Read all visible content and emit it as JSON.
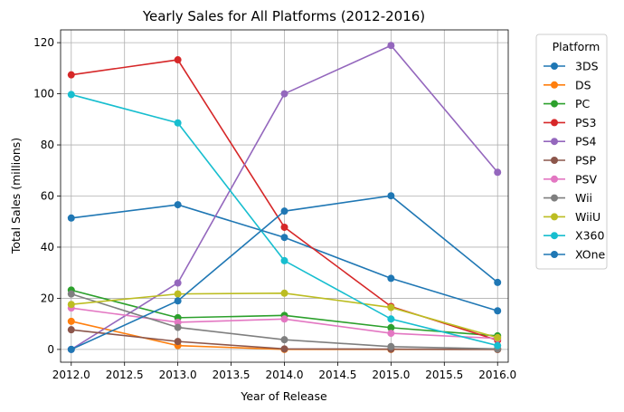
{
  "chart_data": {
    "type": "line",
    "title": "Yearly Sales for All Platforms (2012-2016)",
    "xlabel": "Year of Release",
    "ylabel": "Total Sales (millions)",
    "x": [
      2012,
      2013,
      2014,
      2015,
      2016
    ],
    "xlim": [
      2011.9,
      2016.1
    ],
    "ylim": [
      -5,
      125
    ],
    "x_ticks": [
      2012.0,
      2012.5,
      2013.0,
      2013.5,
      2014.0,
      2014.5,
      2015.0,
      2015.5,
      2016.0
    ],
    "x_tick_labels": [
      "2012.0",
      "2012.5",
      "2013.0",
      "2013.5",
      "2014.0",
      "2014.5",
      "2015.0",
      "2015.5",
      "2016.0"
    ],
    "y_ticks": [
      0,
      20,
      40,
      60,
      80,
      100,
      120
    ],
    "y_tick_labels": [
      "0",
      "20",
      "40",
      "60",
      "80",
      "100",
      "120"
    ],
    "grid": true,
    "legend_title": "Platform",
    "legend_position": "outside-right",
    "series": [
      {
        "name": "3DS",
        "color": "#1f77b4",
        "values": [
          51.4,
          56.6,
          43.8,
          27.8,
          15.1
        ]
      },
      {
        "name": "DS",
        "color": "#ff7f0e",
        "values": [
          11.0,
          1.5,
          0,
          0,
          0
        ]
      },
      {
        "name": "PC",
        "color": "#2ca02c",
        "values": [
          23.2,
          12.4,
          13.3,
          8.5,
          5.3
        ]
      },
      {
        "name": "PS3",
        "color": "#d62728",
        "values": [
          107.4,
          113.3,
          47.8,
          16.8,
          3.6
        ]
      },
      {
        "name": "PS4",
        "color": "#9467bd",
        "values": [
          0,
          26.0,
          100.0,
          118.9,
          69.3
        ]
      },
      {
        "name": "PSP",
        "color": "#8c564b",
        "values": [
          7.7,
          3.1,
          0.2,
          0.1,
          0
        ]
      },
      {
        "name": "PSV",
        "color": "#e377c2",
        "values": [
          16.2,
          10.6,
          11.9,
          6.3,
          4.3
        ]
      },
      {
        "name": "Wii",
        "color": "#7f7f7f",
        "values": [
          21.7,
          8.6,
          3.8,
          1.1,
          0.2
        ]
      },
      {
        "name": "WiiU",
        "color": "#bcbd22",
        "values": [
          17.6,
          21.7,
          22.0,
          16.4,
          4.6
        ]
      },
      {
        "name": "X360",
        "color": "#17becf",
        "values": [
          99.7,
          88.6,
          34.7,
          11.9,
          1.5
        ]
      },
      {
        "name": "XOne",
        "color": "#1f77b4",
        "values": [
          0,
          19.0,
          54.1,
          60.1,
          26.2
        ]
      }
    ]
  }
}
